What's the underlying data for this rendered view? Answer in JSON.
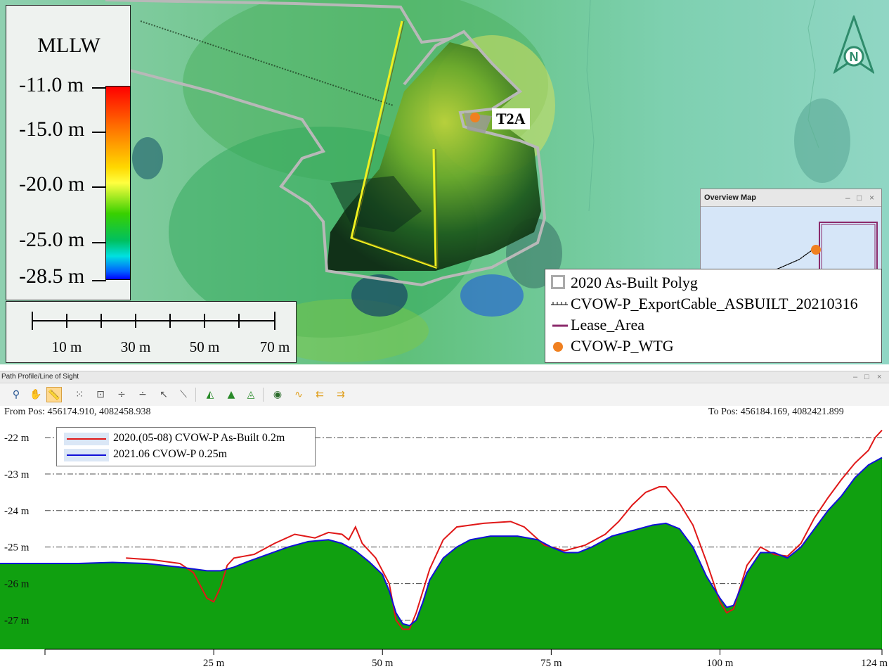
{
  "map": {
    "elevation_legend": {
      "title": "MLLW",
      "labels": [
        "-11.0 m",
        "-15.0 m",
        "-20.0 m",
        "-25.0 m",
        "-28.5 m"
      ]
    },
    "scale_bar": {
      "labels": [
        "10 m",
        "30 m",
        "50 m",
        "70 m"
      ]
    },
    "point_label": "T2A",
    "north_arrow": {
      "icon": "north-arrow-icon",
      "letter": "N",
      "color": "#2e8b6b"
    },
    "overview": {
      "title": "Overview Map",
      "minimize": "–",
      "maximize": "□",
      "close": "×"
    },
    "layers": [
      {
        "label": "2020 As-Built Polyg",
        "icon": "polygon-layer-icon"
      },
      {
        "label": "CVOW-P_ExportCable_ASBUILT_20210316",
        "icon": "cable-line-icon"
      },
      {
        "label": "Lease_Area",
        "icon": "lease-line-icon",
        "color": "#8b2a6b"
      },
      {
        "label": "CVOW-P_WTG",
        "icon": "wtg-point-icon",
        "color": "#f08020"
      }
    ]
  },
  "profile_panel": {
    "title": "Path Profile/Line of Sight",
    "window_controls": {
      "minimize": "–",
      "maximize": "□",
      "close": "×"
    },
    "from_pos": "From Pos: 456174.910, 4082458.938",
    "to_pos": "To Pos: 456184.169, 4082421.899",
    "toolbar": [
      "zoom-in-icon",
      "pan-hand-icon",
      "ruler-icon",
      "grid-dots-icon",
      "grid-select-icon",
      "split-line-icon",
      "split-dash-icon",
      "pointer-icon",
      "cursor-line-icon",
      "terrain-profile-icon",
      "terrain-fill-icon",
      "terrain-zoom-icon",
      "eye-view-icon",
      "line-chart-icon",
      "arrow-left-icon",
      "arrow-right-icon"
    ]
  },
  "chart_data": {
    "type": "line",
    "title": "",
    "xlabel": "",
    "ylabel": "",
    "x_ticks": [
      "25 m",
      "50 m",
      "75 m",
      "100 m",
      "124 m"
    ],
    "y_ticks": [
      "-22 m",
      "-23 m",
      "-24 m",
      "-25 m",
      "-26 m",
      "-27 m"
    ],
    "xlim": [
      0,
      124
    ],
    "ylim": [
      -27.8,
      -21.5
    ],
    "grid": "horizontal dash-dot",
    "legend_position": "top-left",
    "series": [
      {
        "name": "2020.(05-08) CVOW-P As-Built 0.2m",
        "color": "#e01818",
        "points": [
          [
            12,
            -25.3
          ],
          [
            16,
            -25.35
          ],
          [
            20,
            -25.45
          ],
          [
            22,
            -25.7
          ],
          [
            24,
            -26.4
          ],
          [
            25,
            -26.5
          ],
          [
            26,
            -26.1
          ],
          [
            27,
            -25.5
          ],
          [
            28,
            -25.3
          ],
          [
            31,
            -25.2
          ],
          [
            34,
            -24.9
          ],
          [
            37,
            -24.65
          ],
          [
            40,
            -24.75
          ],
          [
            42,
            -24.6
          ],
          [
            44,
            -24.65
          ],
          [
            45,
            -24.8
          ],
          [
            46,
            -24.45
          ],
          [
            47,
            -24.9
          ],
          [
            49,
            -25.3
          ],
          [
            51,
            -26.0
          ],
          [
            52,
            -27.0
          ],
          [
            53,
            -27.25
          ],
          [
            54,
            -27.25
          ],
          [
            55,
            -26.8
          ],
          [
            57,
            -25.6
          ],
          [
            59,
            -24.8
          ],
          [
            61,
            -24.45
          ],
          [
            65,
            -24.35
          ],
          [
            69,
            -24.3
          ],
          [
            71,
            -24.45
          ],
          [
            74,
            -24.95
          ],
          [
            77,
            -25.1
          ],
          [
            80,
            -24.95
          ],
          [
            83,
            -24.65
          ],
          [
            85,
            -24.3
          ],
          [
            87,
            -23.85
          ],
          [
            89,
            -23.5
          ],
          [
            91,
            -23.35
          ],
          [
            92,
            -23.35
          ],
          [
            94,
            -23.8
          ],
          [
            96,
            -24.4
          ],
          [
            98,
            -25.4
          ],
          [
            100,
            -26.5
          ],
          [
            101,
            -26.8
          ],
          [
            102,
            -26.7
          ],
          [
            104,
            -25.5
          ],
          [
            106,
            -25.0
          ],
          [
            108,
            -25.2
          ],
          [
            110,
            -25.25
          ],
          [
            112,
            -24.9
          ],
          [
            114,
            -24.2
          ],
          [
            116,
            -23.65
          ],
          [
            118,
            -23.15
          ],
          [
            120,
            -22.7
          ],
          [
            122,
            -22.35
          ],
          [
            123,
            -22.0
          ],
          [
            124,
            -21.8
          ]
        ]
      },
      {
        "name": "2021.06 CVOW-P 0.25m",
        "color": "#1010d8",
        "points": [
          [
            0,
            -25.45
          ],
          [
            5,
            -25.45
          ],
          [
            10,
            -25.42
          ],
          [
            15,
            -25.45
          ],
          [
            20,
            -25.55
          ],
          [
            24,
            -25.65
          ],
          [
            26,
            -25.65
          ],
          [
            28,
            -25.55
          ],
          [
            30,
            -25.4
          ],
          [
            33,
            -25.2
          ],
          [
            36,
            -25.0
          ],
          [
            39,
            -24.85
          ],
          [
            42,
            -24.8
          ],
          [
            44,
            -24.9
          ],
          [
            46,
            -25.1
          ],
          [
            48,
            -25.4
          ],
          [
            50,
            -25.75
          ],
          [
            51,
            -26.2
          ],
          [
            52,
            -26.8
          ],
          [
            53,
            -27.1
          ],
          [
            54,
            -27.15
          ],
          [
            55,
            -27.0
          ],
          [
            56,
            -26.5
          ],
          [
            57,
            -25.9
          ],
          [
            59,
            -25.3
          ],
          [
            61,
            -25.0
          ],
          [
            63,
            -24.8
          ],
          [
            66,
            -24.7
          ],
          [
            70,
            -24.7
          ],
          [
            73,
            -24.8
          ],
          [
            75,
            -25.0
          ],
          [
            77,
            -25.15
          ],
          [
            79,
            -25.15
          ],
          [
            81,
            -25.0
          ],
          [
            84,
            -24.7
          ],
          [
            87,
            -24.55
          ],
          [
            90,
            -24.4
          ],
          [
            92,
            -24.35
          ],
          [
            94,
            -24.5
          ],
          [
            96,
            -25.0
          ],
          [
            98,
            -25.8
          ],
          [
            100,
            -26.4
          ],
          [
            101,
            -26.65
          ],
          [
            102,
            -26.6
          ],
          [
            104,
            -25.7
          ],
          [
            106,
            -25.15
          ],
          [
            108,
            -25.15
          ],
          [
            110,
            -25.3
          ],
          [
            112,
            -25.0
          ],
          [
            114,
            -24.5
          ],
          [
            116,
            -24.0
          ],
          [
            118,
            -23.6
          ],
          [
            120,
            -23.1
          ],
          [
            122,
            -22.75
          ],
          [
            124,
            -22.55
          ]
        ]
      }
    ]
  }
}
